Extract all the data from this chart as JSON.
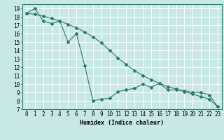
{
  "xlabel": "Humidex (Indice chaleur)",
  "background_color": "#c8e8e8",
  "grid_color": "#ffffff",
  "line_color": "#2d7a6a",
  "xlim": [
    -0.5,
    23.5
  ],
  "ylim": [
    7,
    19.5
  ],
  "xticks": [
    0,
    1,
    2,
    3,
    4,
    5,
    6,
    7,
    8,
    9,
    10,
    11,
    12,
    13,
    14,
    15,
    16,
    17,
    18,
    19,
    20,
    21,
    22,
    23
  ],
  "yticks": [
    7,
    8,
    9,
    10,
    11,
    12,
    13,
    14,
    15,
    16,
    17,
    18,
    19
  ],
  "line1_x": [
    0,
    1,
    2,
    3,
    4,
    5,
    6,
    7,
    8,
    9,
    10,
    11,
    12,
    13,
    14,
    15,
    16,
    17,
    18,
    19,
    20,
    21,
    22,
    23
  ],
  "line1_y": [
    18.4,
    19.0,
    17.5,
    17.2,
    17.5,
    15.0,
    16.0,
    12.2,
    8.0,
    8.2,
    8.3,
    9.1,
    9.3,
    9.5,
    10.0,
    9.6,
    10.1,
    9.3,
    9.3,
    9.2,
    9.0,
    9.0,
    8.7,
    7.3
  ],
  "line2_x": [
    0,
    1,
    2,
    3,
    4,
    5,
    6,
    7,
    8,
    9,
    10,
    11,
    12,
    13,
    14,
    15,
    16,
    17,
    18,
    19,
    20,
    21,
    22,
    23
  ],
  "line2_y": [
    18.4,
    18.3,
    18.1,
    17.8,
    17.5,
    17.1,
    16.7,
    16.2,
    15.6,
    14.9,
    14.0,
    13.1,
    12.3,
    11.6,
    11.0,
    10.5,
    10.1,
    9.7,
    9.4,
    9.1,
    8.8,
    8.5,
    8.2,
    7.3
  ],
  "fontsize_labels": 6,
  "fontsize_ticks": 5.5
}
